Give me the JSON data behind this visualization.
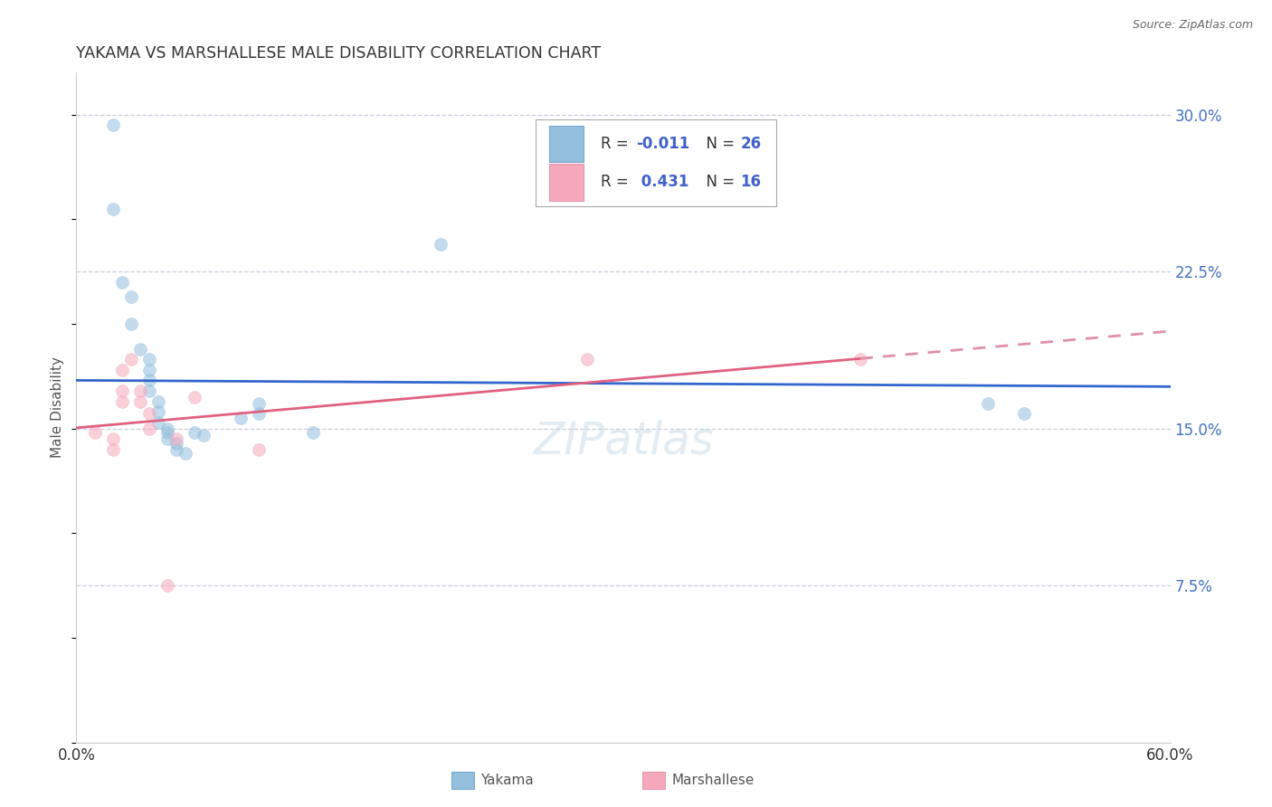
{
  "title": "YAKAMA VS MARSHALLESE MALE DISABILITY CORRELATION CHART",
  "source": "Source: ZipAtlas.com",
  "ylabel": "Male Disability",
  "xlim": [
    0.0,
    0.6
  ],
  "ylim": [
    0.0,
    0.32
  ],
  "yticks": [
    0.075,
    0.15,
    0.225,
    0.3
  ],
  "ytick_labels": [
    "7.5%",
    "15.0%",
    "22.5%",
    "30.0%"
  ],
  "yakama_color": "#93bfdd",
  "marshallese_color": "#f5a8bc",
  "trend_yakama_color": "#3366cc",
  "trend_marsh_color": "#e06080",
  "trend_marsh_dashed_color": "#e090a8",
  "yakama_points": [
    [
      0.02,
      0.295
    ],
    [
      0.02,
      0.255
    ],
    [
      0.025,
      0.22
    ],
    [
      0.03,
      0.213
    ],
    [
      0.03,
      0.2
    ],
    [
      0.035,
      0.188
    ],
    [
      0.04,
      0.183
    ],
    [
      0.04,
      0.178
    ],
    [
      0.04,
      0.173
    ],
    [
      0.04,
      0.168
    ],
    [
      0.045,
      0.163
    ],
    [
      0.045,
      0.158
    ],
    [
      0.045,
      0.153
    ],
    [
      0.05,
      0.15
    ],
    [
      0.05,
      0.148
    ],
    [
      0.05,
      0.145
    ],
    [
      0.055,
      0.143
    ],
    [
      0.055,
      0.14
    ],
    [
      0.06,
      0.138
    ],
    [
      0.065,
      0.148
    ],
    [
      0.07,
      0.147
    ],
    [
      0.09,
      0.155
    ],
    [
      0.1,
      0.162
    ],
    [
      0.1,
      0.157
    ],
    [
      0.13,
      0.148
    ],
    [
      0.2,
      0.238
    ],
    [
      0.5,
      0.162
    ],
    [
      0.52,
      0.157
    ]
  ],
  "marshallese_points": [
    [
      0.01,
      0.148
    ],
    [
      0.02,
      0.145
    ],
    [
      0.02,
      0.14
    ],
    [
      0.025,
      0.178
    ],
    [
      0.025,
      0.168
    ],
    [
      0.025,
      0.163
    ],
    [
      0.03,
      0.183
    ],
    [
      0.035,
      0.168
    ],
    [
      0.035,
      0.163
    ],
    [
      0.04,
      0.157
    ],
    [
      0.04,
      0.15
    ],
    [
      0.055,
      0.145
    ],
    [
      0.065,
      0.165
    ],
    [
      0.1,
      0.14
    ],
    [
      0.28,
      0.183
    ],
    [
      0.43,
      0.183
    ],
    [
      0.05,
      0.075
    ]
  ],
  "background_color": "#ffffff",
  "grid_color": "#ccccdd",
  "marker_size": 100,
  "marker_alpha": 0.55
}
